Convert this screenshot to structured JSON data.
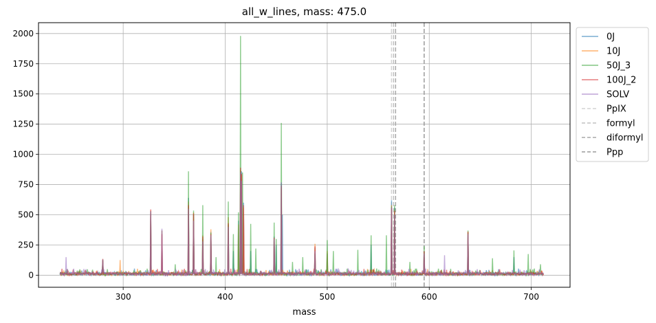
{
  "chart_data": {
    "type": "line",
    "title": "all_w_lines, mass: 475.0",
    "xlabel": "mass",
    "ylabel": "",
    "xlim": [
      217,
      738
    ],
    "ylim": [
      -100,
      2090
    ],
    "xticks": [
      300,
      400,
      500,
      600,
      700
    ],
    "yticks": [
      0,
      250,
      500,
      750,
      1000,
      1250,
      1500,
      1750,
      2000
    ],
    "grid": true,
    "legend_position": "outside-right",
    "x_range": [
      238,
      712
    ],
    "series": [
      {
        "name": "0J",
        "color": "#1f77b4",
        "peaks": [
          [
            280,
            120
          ],
          [
            327,
            520
          ],
          [
            338,
            370
          ],
          [
            364,
            640
          ],
          [
            369,
            500
          ],
          [
            378,
            300
          ],
          [
            386,
            360
          ],
          [
            403,
            420
          ],
          [
            408,
            200
          ],
          [
            413,
            450
          ],
          [
            415,
            800
          ],
          [
            416,
            860
          ],
          [
            418,
            600
          ],
          [
            425,
            200
          ],
          [
            448,
            320
          ],
          [
            450,
            250
          ],
          [
            455,
            760
          ],
          [
            456,
            500
          ],
          [
            488,
            230
          ],
          [
            500,
            180
          ],
          [
            543,
            250
          ],
          [
            563,
            620
          ],
          [
            566,
            560
          ],
          [
            595,
            200
          ],
          [
            638,
            350
          ],
          [
            683,
            150
          ]
        ]
      },
      {
        "name": "10J",
        "color": "#ff7f0e",
        "peaks": [
          [
            280,
            125
          ],
          [
            297,
            125
          ],
          [
            327,
            535
          ],
          [
            338,
            370
          ],
          [
            364,
            610
          ],
          [
            369,
            520
          ],
          [
            378,
            330
          ],
          [
            386,
            380
          ],
          [
            403,
            480
          ],
          [
            413,
            420
          ],
          [
            415,
            870
          ],
          [
            416,
            830
          ],
          [
            418,
            560
          ],
          [
            448,
            300
          ],
          [
            455,
            720
          ],
          [
            488,
            260
          ],
          [
            500,
            200
          ],
          [
            563,
            580
          ],
          [
            566,
            540
          ],
          [
            595,
            190
          ],
          [
            638,
            360
          ]
        ]
      },
      {
        "name": "50J_3",
        "color": "#2ca02c",
        "peaks": [
          [
            280,
            130
          ],
          [
            327,
            530
          ],
          [
            351,
            90
          ],
          [
            364,
            860
          ],
          [
            369,
            535
          ],
          [
            378,
            580
          ],
          [
            386,
            350
          ],
          [
            391,
            150
          ],
          [
            403,
            610
          ],
          [
            408,
            340
          ],
          [
            413,
            520
          ],
          [
            415,
            1980
          ],
          [
            417,
            850
          ],
          [
            425,
            425
          ],
          [
            430,
            220
          ],
          [
            448,
            435
          ],
          [
            450,
            300
          ],
          [
            455,
            1260
          ],
          [
            466,
            110
          ],
          [
            476,
            150
          ],
          [
            488,
            180
          ],
          [
            500,
            290
          ],
          [
            506,
            200
          ],
          [
            530,
            210
          ],
          [
            543,
            330
          ],
          [
            558,
            330
          ],
          [
            563,
            570
          ],
          [
            566,
            580
          ],
          [
            581,
            110
          ],
          [
            595,
            240
          ],
          [
            638,
            370
          ],
          [
            662,
            140
          ],
          [
            683,
            205
          ],
          [
            697,
            175
          ],
          [
            709,
            90
          ]
        ]
      },
      {
        "name": "100J_2",
        "color": "#d62728",
        "peaks": [
          [
            280,
            135
          ],
          [
            327,
            545
          ],
          [
            338,
            340
          ],
          [
            364,
            580
          ],
          [
            369,
            510
          ],
          [
            378,
            320
          ],
          [
            386,
            340
          ],
          [
            403,
            430
          ],
          [
            415,
            890
          ],
          [
            416,
            840
          ],
          [
            418,
            580
          ],
          [
            448,
            310
          ],
          [
            455,
            740
          ],
          [
            488,
            240
          ],
          [
            563,
            560
          ],
          [
            566,
            530
          ],
          [
            595,
            200
          ],
          [
            638,
            360
          ]
        ]
      },
      {
        "name": "SOLV",
        "color": "#9467bd",
        "peaks": [
          [
            244,
            150
          ],
          [
            280,
            130
          ],
          [
            327,
            530
          ],
          [
            338,
            385
          ],
          [
            364,
            550
          ],
          [
            369,
            450
          ],
          [
            378,
            280
          ],
          [
            386,
            330
          ],
          [
            403,
            400
          ],
          [
            415,
            850
          ],
          [
            416,
            780
          ],
          [
            448,
            300
          ],
          [
            455,
            770
          ],
          [
            488,
            200
          ],
          [
            563,
            560
          ],
          [
            566,
            500
          ],
          [
            595,
            180
          ],
          [
            615,
            165
          ],
          [
            638,
            340
          ]
        ]
      }
    ],
    "vlines": [
      {
        "name": "PpIX",
        "x": 563,
        "color": "#d3d3d3"
      },
      {
        "name": "formyl",
        "x": 565,
        "color": "#c0c0c0"
      },
      {
        "name": "diformyl",
        "x": 567,
        "color": "#a9a9a9"
      },
      {
        "name": "Ppp",
        "x": 595,
        "color": "#9a9a9a"
      }
    ]
  }
}
